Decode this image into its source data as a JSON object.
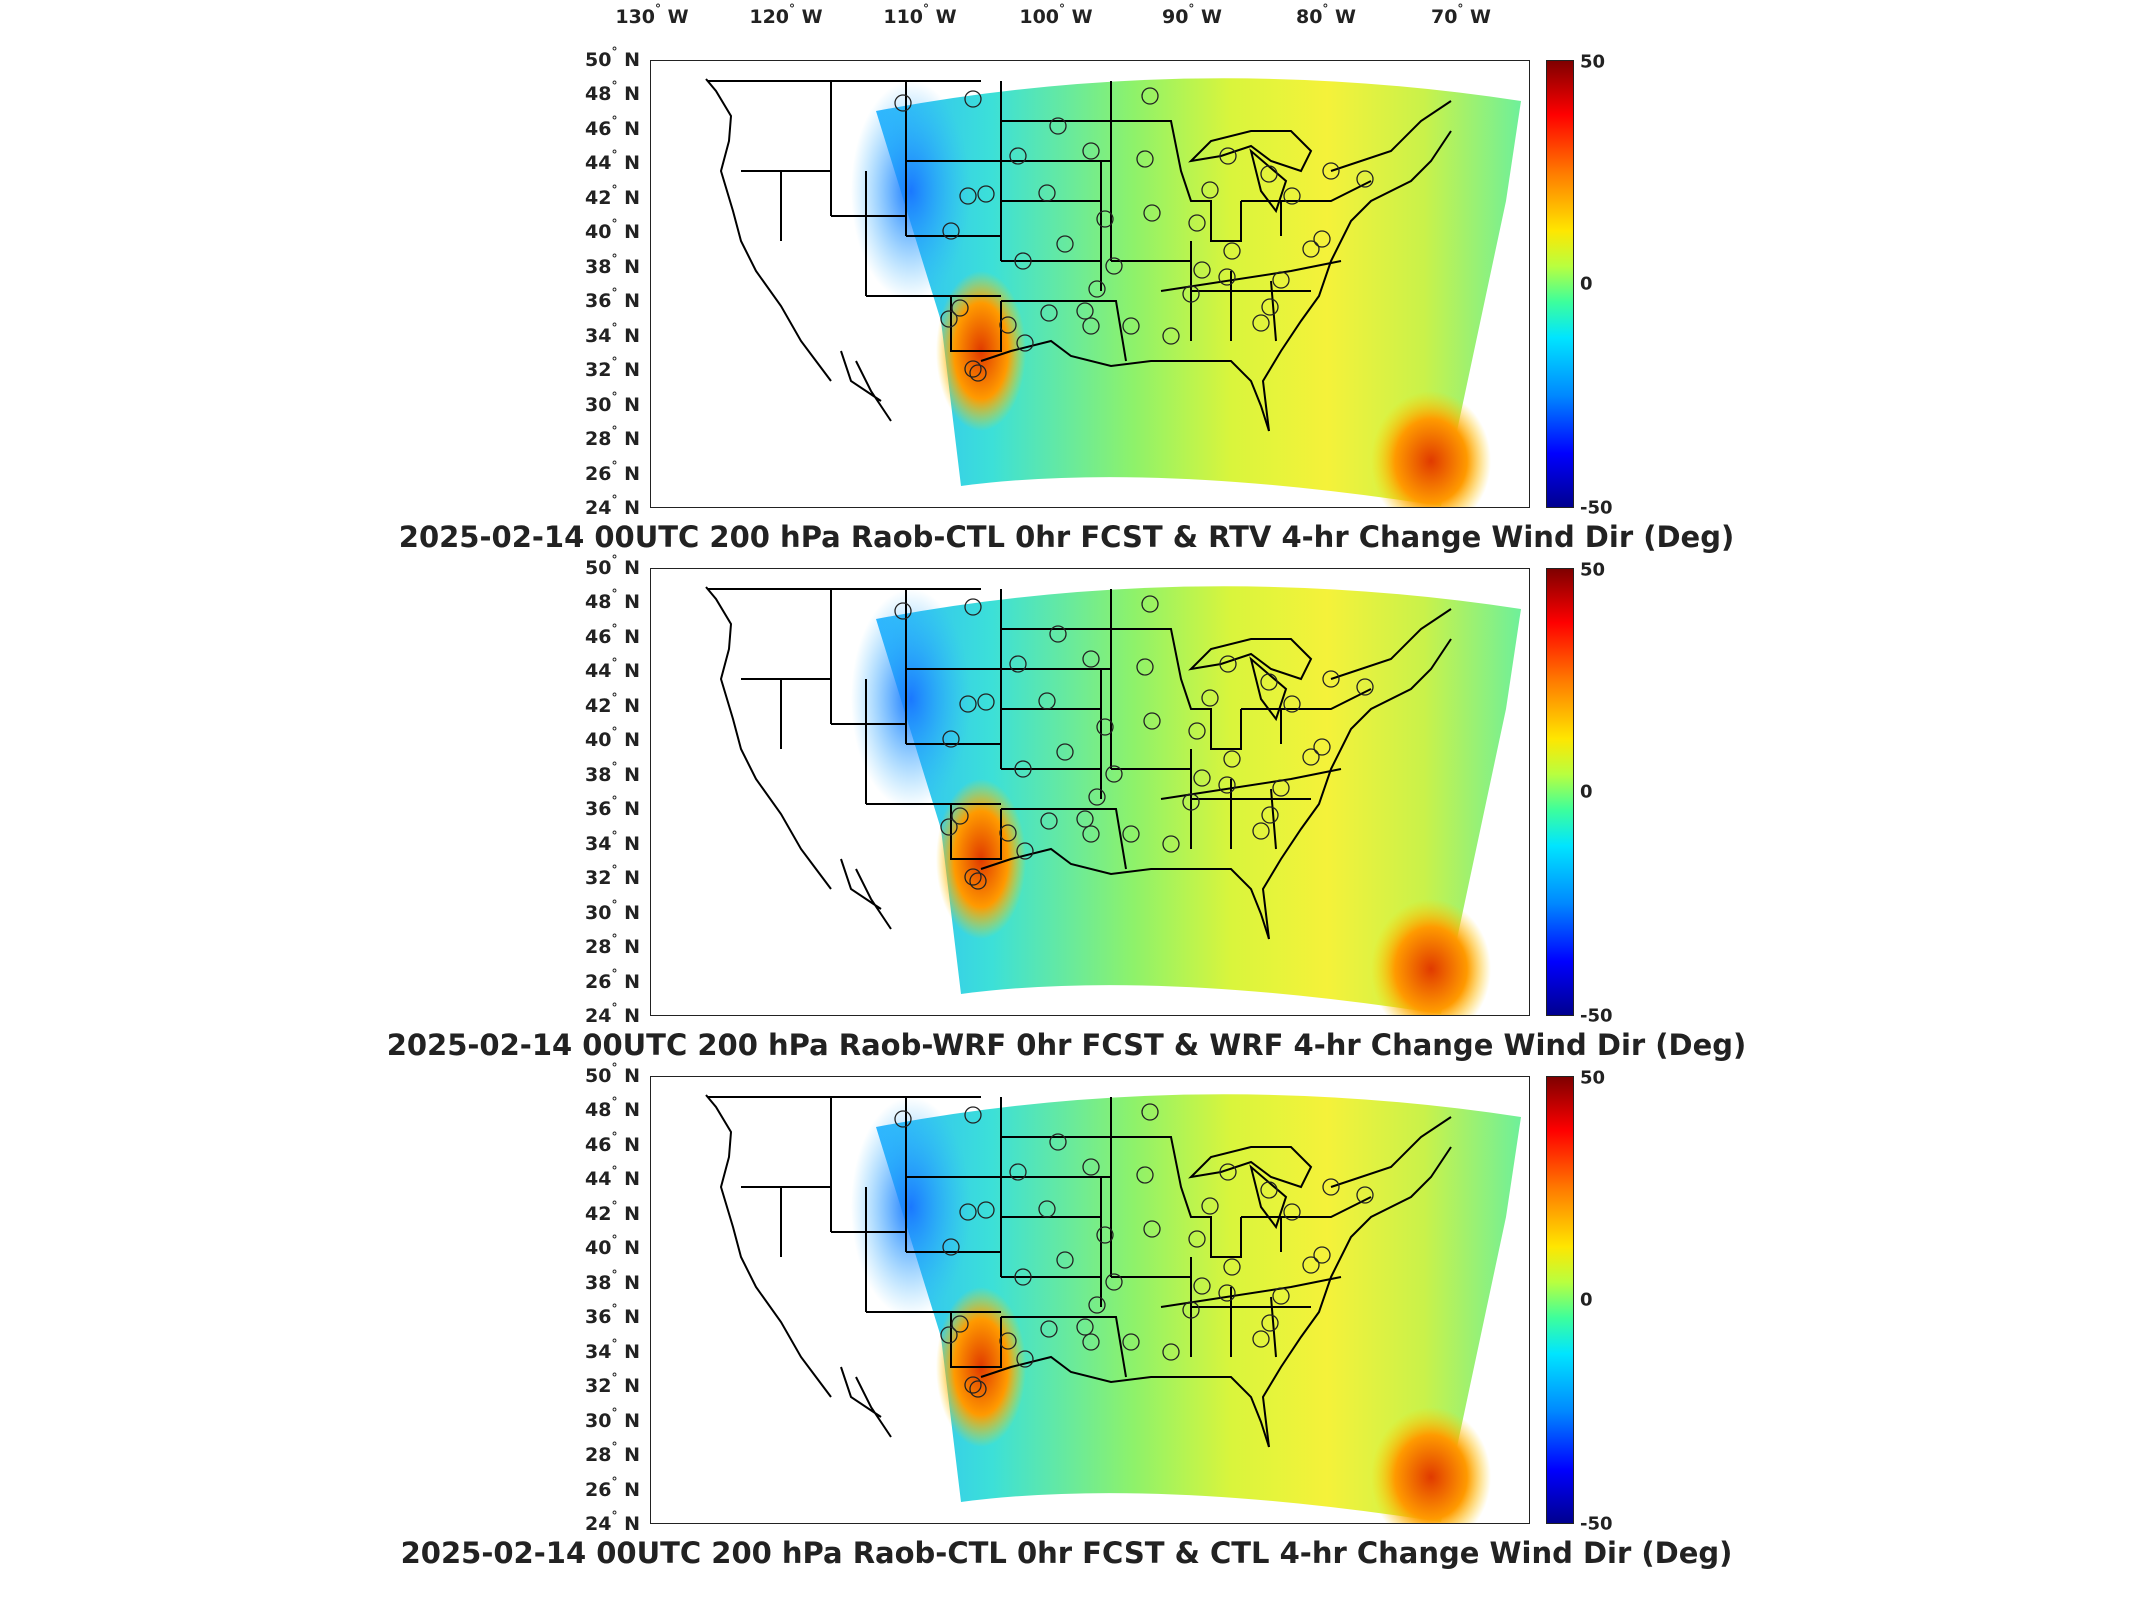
{
  "longitude_ticks": [
    {
      "label": "130",
      "hemi": "W"
    },
    {
      "label": "120",
      "hemi": "W"
    },
    {
      "label": "110",
      "hemi": "W"
    },
    {
      "label": "100",
      "hemi": "W"
    },
    {
      "label": "90",
      "hemi": "W"
    },
    {
      "label": "80",
      "hemi": "W"
    },
    {
      "label": "70",
      "hemi": "W"
    }
  ],
  "latitude_ticks": [
    "50",
    "48",
    "46",
    "44",
    "42",
    "40",
    "38",
    "36",
    "34",
    "32",
    "30",
    "28",
    "26",
    "24"
  ],
  "latitude_hemi": "N",
  "degree_symbol": "°",
  "colorbar": {
    "max": "50",
    "mid": "0",
    "min": "-50"
  },
  "colors": {
    "dark_red": "#7f0000",
    "red": "#ff0000",
    "orange": "#ff7a00",
    "yellow": "#ffe600",
    "green": "#3dff9c",
    "cyan": "#00e5ff",
    "blue": "#0000ff",
    "navy": "#00008f",
    "outline": "#000000"
  },
  "panels": [
    {
      "title": "2025-02-14 00UTC 200 hPa Raob-CTL 0hr FCST & RTV 4-hr Change Wind Dir (Deg)"
    },
    {
      "title": "2025-02-14 00UTC 200 hPa Raob-WRF 0hr FCST & WRF 4-hr Change Wind Dir (Deg)"
    },
    {
      "title": "2025-02-14 00UTC 200 hPa Raob-CTL 0hr FCST & CTL 4-hr Change Wind Dir (Deg)"
    }
  ]
}
